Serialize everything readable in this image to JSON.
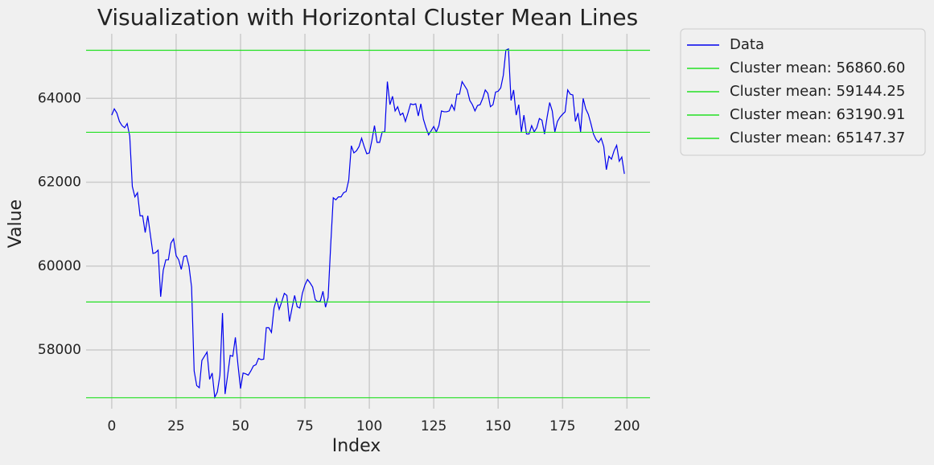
{
  "chart_data": {
    "type": "line",
    "title": "Visualization with Horizontal Cluster Mean Lines",
    "x_label": "Index",
    "y_label": "Value",
    "x": [
      0,
      1,
      2,
      3,
      4,
      5,
      6,
      7,
      8,
      9,
      10,
      11,
      12,
      13,
      14,
      15,
      16,
      17,
      18,
      19,
      20,
      21,
      22,
      23,
      24,
      25,
      26,
      27,
      28,
      29,
      30,
      31,
      32,
      33,
      34,
      35,
      36,
      37,
      38,
      39,
      40,
      41,
      42,
      43,
      44,
      45,
      46,
      47,
      48,
      49,
      50,
      51,
      52,
      53,
      54,
      55,
      56,
      57,
      58,
      59,
      60,
      61,
      62,
      63,
      64,
      65,
      66,
      67,
      68,
      69,
      70,
      71,
      72,
      73,
      74,
      75,
      76,
      77,
      78,
      79,
      80,
      81,
      82,
      83,
      84,
      85,
      86,
      87,
      88,
      89,
      90,
      91,
      92,
      93,
      94,
      95,
      96,
      97,
      98,
      99,
      100,
      101,
      102,
      103,
      104,
      105,
      106,
      107,
      108,
      109,
      110,
      111,
      112,
      113,
      114,
      115,
      116,
      117,
      118,
      119,
      120,
      121,
      122,
      123,
      124,
      125,
      126,
      127,
      128,
      129,
      130,
      131,
      132,
      133,
      134,
      135,
      136,
      137,
      138,
      139,
      140,
      141,
      142,
      143,
      144,
      145,
      146,
      147,
      148,
      149,
      150,
      151,
      152,
      153,
      154,
      155,
      156,
      157,
      158,
      159,
      160,
      161,
      162,
      163,
      164,
      165,
      166,
      167,
      168,
      169,
      170,
      171,
      172,
      173,
      174,
      175,
      176,
      177,
      178,
      179,
      180,
      181,
      182,
      183,
      184,
      185,
      186,
      187,
      188,
      189,
      190,
      191,
      192,
      193,
      194,
      195,
      196,
      197,
      198,
      199
    ],
    "series": [
      {
        "name": "Data",
        "color": "#0000ee",
        "values": [
          63600,
          63750,
          63650,
          63450,
          63350,
          63300,
          63400,
          63100,
          61900,
          61650,
          61750,
          61200,
          61200,
          60800,
          61200,
          60750,
          60300,
          60320,
          60380,
          59270,
          59900,
          60150,
          60150,
          60550,
          60650,
          60250,
          60150,
          59920,
          60230,
          60250,
          60000,
          59500,
          57500,
          57150,
          57100,
          57750,
          57850,
          57950,
          57300,
          57450,
          56870,
          57000,
          57400,
          58880,
          56950,
          57400,
          57870,
          57850,
          58300,
          57650,
          57080,
          57450,
          57430,
          57400,
          57500,
          57620,
          57650,
          57800,
          57770,
          57780,
          58530,
          58530,
          58420,
          59000,
          59220,
          58970,
          59150,
          59350,
          59300,
          58680,
          59000,
          59300,
          59030,
          59000,
          59350,
          59550,
          59680,
          59600,
          59500,
          59200,
          59150,
          59170,
          59400,
          59020,
          59250,
          60500,
          61630,
          61580,
          61650,
          61650,
          61750,
          61780,
          62050,
          62870,
          62700,
          62750,
          62850,
          63050,
          62850,
          62680,
          62700,
          63000,
          63350,
          62950,
          62950,
          63200,
          63200,
          64400,
          63850,
          64050,
          63700,
          63800,
          63600,
          63650,
          63450,
          63650,
          63870,
          63850,
          63870,
          63580,
          63870,
          63500,
          63300,
          63130,
          63230,
          63330,
          63200,
          63350,
          63700,
          63680,
          63680,
          63700,
          63850,
          63720,
          64100,
          64100,
          64400,
          64300,
          64200,
          63950,
          63850,
          63700,
          63830,
          63850,
          64000,
          64200,
          64120,
          63800,
          63850,
          64150,
          64170,
          64250,
          64550,
          65150,
          65180,
          63950,
          64200,
          63600,
          63850,
          63200,
          63600,
          63150,
          63150,
          63350,
          63200,
          63300,
          63520,
          63480,
          63150,
          63550,
          63900,
          63700,
          63200,
          63450,
          63550,
          63620,
          63680,
          64200,
          64100,
          64080,
          63450,
          63650,
          63200,
          64000,
          63750,
          63620,
          63400,
          63150,
          63020,
          62950,
          63050,
          62850,
          62300,
          62620,
          62550,
          62750,
          62880,
          62500,
          62600,
          62200
        ]
      }
    ],
    "hlines": [
      {
        "name": "Cluster mean: 56860.60",
        "value": 56860.6,
        "color": "#22e022"
      },
      {
        "name": "Cluster mean: 59144.25",
        "value": 59144.25,
        "color": "#22e022"
      },
      {
        "name": "Cluster mean: 63190.91",
        "value": 63190.91,
        "color": "#22e022"
      },
      {
        "name": "Cluster mean: 65147.37",
        "value": 65147.37,
        "color": "#22e022"
      }
    ],
    "xlim": [
      -9.95,
      208.95
    ],
    "ylim": [
      56600,
      65540
    ],
    "xticks": [
      0,
      25,
      50,
      75,
      100,
      125,
      150,
      175,
      200
    ],
    "yticks": [
      58000,
      60000,
      62000,
      64000
    ],
    "grid": true,
    "legend": "outside upper right"
  }
}
